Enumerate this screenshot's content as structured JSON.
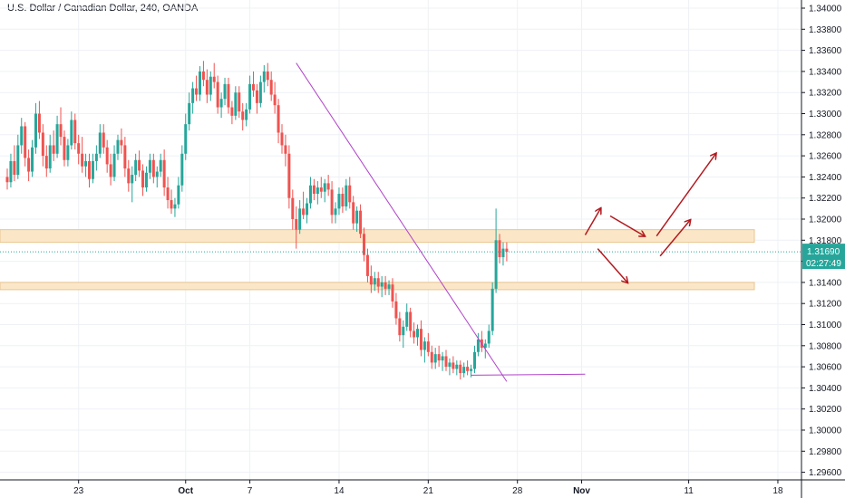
{
  "header": {
    "title": "U.S. Dollar / Canadian Dollar, 240, OANDA"
  },
  "price_tag": {
    "price": "1.31690",
    "countdown": "02:27:49"
  },
  "colors": {
    "up": "#26a69a",
    "down": "#ef5350",
    "zone_fill": "#fbe7c8",
    "zone_border": "#e8c58f",
    "trendline": "#b043c9",
    "arrow": "#b2191e",
    "price_line": "#26a69a",
    "grid": "#eef1f5"
  },
  "chart_data": {
    "type": "candlestick",
    "title": "U.S. Dollar / Canadian Dollar, 240, OANDA",
    "xlabel": "",
    "ylabel": "",
    "ylim": [
      1.295,
      1.341
    ],
    "y_ticks": [
      "1.34000",
      "1.33800",
      "1.33600",
      "1.33400",
      "1.33200",
      "1.33000",
      "1.32800",
      "1.32600",
      "1.32400",
      "1.32200",
      "1.32000",
      "1.31800",
      "1.31600",
      "1.31400",
      "1.31200",
      "1.31000",
      "1.30800",
      "1.30600",
      "1.30400",
      "1.30200",
      "1.30000",
      "1.29800",
      "1.29600"
    ],
    "x_ticks": [
      {
        "label": "23",
        "index": 20
      },
      {
        "label": "Oct",
        "index": 50
      },
      {
        "label": "7",
        "index": 68
      },
      {
        "label": "14",
        "index": 93
      },
      {
        "label": "21",
        "index": 118
      },
      {
        "label": "28",
        "index": 143
      },
      {
        "label": "Nov",
        "index": 161
      },
      {
        "label": "11",
        "index": 191
      },
      {
        "label": "18",
        "index": 216
      }
    ],
    "key_prices": [
      1.3362,
      1.3356,
      1.335,
      1.33,
      1.322,
      1.319,
      1.3178,
      1.3168,
      1.314,
      1.3135,
      1.3085,
      1.306,
      1.3052,
      1.3048
    ],
    "candles": [
      [
        1.324,
        1.3248,
        1.3228,
        1.3235
      ],
      [
        1.3235,
        1.3262,
        1.323,
        1.3255
      ],
      [
        1.3255,
        1.327,
        1.3236,
        1.3242
      ],
      [
        1.3242,
        1.328,
        1.3238,
        1.327
      ],
      [
        1.327,
        1.3296,
        1.3262,
        1.3288
      ],
      [
        1.3288,
        1.3292,
        1.325,
        1.3258
      ],
      [
        1.3258,
        1.3266,
        1.3236,
        1.3245
      ],
      [
        1.3245,
        1.3275,
        1.324,
        1.3268
      ],
      [
        1.3268,
        1.331,
        1.3262,
        1.33
      ],
      [
        1.33,
        1.3312,
        1.3276,
        1.3282
      ],
      [
        1.3282,
        1.329,
        1.325,
        1.326
      ],
      [
        1.326,
        1.327,
        1.324,
        1.3248
      ],
      [
        1.3248,
        1.328,
        1.3244,
        1.327
      ],
      [
        1.327,
        1.3284,
        1.3255,
        1.3262
      ],
      [
        1.3262,
        1.3298,
        1.3258,
        1.329
      ],
      [
        1.329,
        1.3306,
        1.327,
        1.3278
      ],
      [
        1.3278,
        1.3284,
        1.325,
        1.3256
      ],
      [
        1.3256,
        1.3276,
        1.325,
        1.327
      ],
      [
        1.327,
        1.3302,
        1.3266,
        1.3294
      ],
      [
        1.3294,
        1.33,
        1.3266,
        1.3272
      ],
      [
        1.3272,
        1.328,
        1.3252,
        1.3262
      ],
      [
        1.3262,
        1.3278,
        1.3244,
        1.325
      ],
      [
        1.325,
        1.3262,
        1.324,
        1.3255
      ],
      [
        1.3255,
        1.3262,
        1.323,
        1.3238
      ],
      [
        1.3238,
        1.3262,
        1.3234,
        1.3255
      ],
      [
        1.3255,
        1.327,
        1.3246,
        1.3262
      ],
      [
        1.3262,
        1.329,
        1.3258,
        1.3282
      ],
      [
        1.3282,
        1.329,
        1.3262,
        1.3268
      ],
      [
        1.3268,
        1.3275,
        1.3244,
        1.3252
      ],
      [
        1.3252,
        1.3262,
        1.3232,
        1.324
      ],
      [
        1.324,
        1.327,
        1.3236,
        1.3262
      ],
      [
        1.3262,
        1.328,
        1.3256,
        1.3275
      ],
      [
        1.3275,
        1.3286,
        1.3262,
        1.327
      ],
      [
        1.327,
        1.3278,
        1.324,
        1.3248
      ],
      [
        1.3248,
        1.3256,
        1.3226,
        1.3234
      ],
      [
        1.3234,
        1.325,
        1.3216,
        1.3242
      ],
      [
        1.3242,
        1.3262,
        1.3236,
        1.3256
      ],
      [
        1.3256,
        1.3265,
        1.324,
        1.3246
      ],
      [
        1.3246,
        1.3252,
        1.3222,
        1.323
      ],
      [
        1.323,
        1.325,
        1.3226,
        1.3244
      ],
      [
        1.3244,
        1.3262,
        1.3238,
        1.3256
      ],
      [
        1.3256,
        1.3262,
        1.3234,
        1.324
      ],
      [
        1.324,
        1.325,
        1.323,
        1.3245
      ],
      [
        1.3245,
        1.3262,
        1.324,
        1.3256
      ],
      [
        1.3256,
        1.3266,
        1.3222,
        1.323
      ],
      [
        1.323,
        1.324,
        1.321,
        1.3218
      ],
      [
        1.3218,
        1.3228,
        1.3205,
        1.321
      ],
      [
        1.321,
        1.322,
        1.3202,
        1.3214
      ],
      [
        1.3214,
        1.324,
        1.321,
        1.3232
      ],
      [
        1.3232,
        1.327,
        1.3226,
        1.3262
      ],
      [
        1.3262,
        1.33,
        1.3256,
        1.329
      ],
      [
        1.329,
        1.332,
        1.3284,
        1.331
      ],
      [
        1.331,
        1.333,
        1.33,
        1.3324
      ],
      [
        1.3324,
        1.3336,
        1.3312,
        1.3318
      ],
      [
        1.3318,
        1.3345,
        1.3312,
        1.334
      ],
      [
        1.334,
        1.335,
        1.3326,
        1.3332
      ],
      [
        1.3332,
        1.3342,
        1.331,
        1.3318
      ],
      [
        1.3318,
        1.334,
        1.3312,
        1.3335
      ],
      [
        1.3335,
        1.3348,
        1.3324,
        1.333
      ],
      [
        1.333,
        1.3336,
        1.33,
        1.3306
      ],
      [
        1.3306,
        1.332,
        1.3296,
        1.3314
      ],
      [
        1.3314,
        1.3334,
        1.3308,
        1.3328
      ],
      [
        1.3328,
        1.3334,
        1.33,
        1.3306
      ],
      [
        1.3306,
        1.3312,
        1.329,
        1.3298
      ],
      [
        1.3298,
        1.3326,
        1.3294,
        1.332
      ],
      [
        1.332,
        1.3326,
        1.3296,
        1.3302
      ],
      [
        1.3302,
        1.331,
        1.3284,
        1.3294
      ],
      [
        1.3294,
        1.331,
        1.3288,
        1.3304
      ],
      [
        1.3304,
        1.3336,
        1.33,
        1.3328
      ],
      [
        1.3328,
        1.334,
        1.3316,
        1.3322
      ],
      [
        1.3322,
        1.3328,
        1.33,
        1.331
      ],
      [
        1.331,
        1.3336,
        1.3306,
        1.333
      ],
      [
        1.333,
        1.3346,
        1.332,
        1.334
      ],
      [
        1.334,
        1.3348,
        1.3326,
        1.3332
      ],
      [
        1.3332,
        1.334,
        1.3312,
        1.3318
      ],
      [
        1.3318,
        1.333,
        1.33,
        1.3308
      ],
      [
        1.3308,
        1.3314,
        1.3272,
        1.3282
      ],
      [
        1.3282,
        1.329,
        1.3262,
        1.327
      ],
      [
        1.327,
        1.328,
        1.325,
        1.3262
      ],
      [
        1.3262,
        1.327,
        1.321,
        1.322
      ],
      [
        1.322,
        1.3228,
        1.319,
        1.32
      ],
      [
        1.32,
        1.3212,
        1.3172,
        1.319
      ],
      [
        1.319,
        1.3218,
        1.3186,
        1.321
      ],
      [
        1.321,
        1.3226,
        1.32,
        1.3204
      ],
      [
        1.3204,
        1.322,
        1.3196,
        1.3215
      ],
      [
        1.3215,
        1.324,
        1.321,
        1.3232
      ],
      [
        1.3232,
        1.3238,
        1.3218,
        1.3224
      ],
      [
        1.3224,
        1.3236,
        1.3214,
        1.323
      ],
      [
        1.323,
        1.324,
        1.322,
        1.3226
      ],
      [
        1.3226,
        1.3238,
        1.3216,
        1.3234
      ],
      [
        1.3234,
        1.3242,
        1.3222,
        1.3228
      ],
      [
        1.3228,
        1.3236,
        1.3196,
        1.3204
      ],
      [
        1.3204,
        1.3216,
        1.3196,
        1.321
      ],
      [
        1.321,
        1.323,
        1.3204,
        1.3224
      ],
      [
        1.3224,
        1.323,
        1.3206,
        1.3212
      ],
      [
        1.3212,
        1.3238,
        1.3208,
        1.3232
      ],
      [
        1.3232,
        1.324,
        1.321,
        1.3216
      ],
      [
        1.3216,
        1.3222,
        1.319,
        1.3196
      ],
      [
        1.3196,
        1.3212,
        1.3188,
        1.3208
      ],
      [
        1.3208,
        1.3214,
        1.3182,
        1.3186
      ],
      [
        1.3186,
        1.3192,
        1.316,
        1.3166
      ],
      [
        1.3166,
        1.3172,
        1.314,
        1.3146
      ],
      [
        1.3146,
        1.3156,
        1.313,
        1.3138
      ],
      [
        1.3138,
        1.315,
        1.3132,
        1.3144
      ],
      [
        1.3144,
        1.315,
        1.313,
        1.3136
      ],
      [
        1.3136,
        1.3146,
        1.3126,
        1.314
      ],
      [
        1.314,
        1.3146,
        1.3128,
        1.3134
      ],
      [
        1.3134,
        1.3142,
        1.3128,
        1.3138
      ],
      [
        1.3138,
        1.3144,
        1.3116,
        1.3122
      ],
      [
        1.3122,
        1.313,
        1.31,
        1.3106
      ],
      [
        1.3106,
        1.3112,
        1.3084,
        1.309
      ],
      [
        1.309,
        1.3104,
        1.3078,
        1.3098
      ],
      [
        1.3098,
        1.312,
        1.3094,
        1.3112
      ],
      [
        1.3112,
        1.3116,
        1.3088,
        1.3094
      ],
      [
        1.3094,
        1.3102,
        1.3082,
        1.3088
      ],
      [
        1.3088,
        1.31,
        1.308,
        1.3096
      ],
      [
        1.3096,
        1.3104,
        1.307,
        1.3076
      ],
      [
        1.3076,
        1.3088,
        1.3064,
        1.3084
      ],
      [
        1.3084,
        1.3092,
        1.307,
        1.3074
      ],
      [
        1.3074,
        1.308,
        1.3058,
        1.3064
      ],
      [
        1.3064,
        1.3078,
        1.3058,
        1.3072
      ],
      [
        1.3072,
        1.308,
        1.306,
        1.3066
      ],
      [
        1.3066,
        1.3074,
        1.3056,
        1.307
      ],
      [
        1.307,
        1.3076,
        1.3056,
        1.306
      ],
      [
        1.306,
        1.3068,
        1.3052,
        1.3064
      ],
      [
        1.3064,
        1.307,
        1.3054,
        1.3058
      ],
      [
        1.3058,
        1.3066,
        1.3052,
        1.3062
      ],
      [
        1.3062,
        1.3066,
        1.3048,
        1.3054
      ],
      [
        1.3054,
        1.3064,
        1.305,
        1.306
      ],
      [
        1.306,
        1.3066,
        1.3052,
        1.3056
      ],
      [
        1.3056,
        1.3062,
        1.305,
        1.3058
      ],
      [
        1.3058,
        1.308,
        1.3054,
        1.3074
      ],
      [
        1.3074,
        1.3092,
        1.307,
        1.3086
      ],
      [
        1.3086,
        1.3094,
        1.3074,
        1.3078
      ],
      [
        1.3078,
        1.3086,
        1.3068,
        1.3082
      ],
      [
        1.3082,
        1.31,
        1.3078,
        1.3094
      ],
      [
        1.3094,
        1.314,
        1.309,
        1.3134
      ],
      [
        1.3134,
        1.321,
        1.313,
        1.318
      ],
      [
        1.318,
        1.3186,
        1.3158,
        1.3164
      ],
      [
        1.3164,
        1.3178,
        1.3156,
        1.3172
      ],
      [
        1.3172,
        1.3178,
        1.316,
        1.3169
      ]
    ]
  },
  "annotations": {
    "resistance_zone": [
      1.3178,
      1.319
    ],
    "support_zone": [
      1.3135,
      1.314
    ],
    "trendline": [
      [
        81,
        1.3348
      ],
      [
        140,
        1.3046
      ]
    ],
    "bottom_line": [
      [
        130,
        1.3052
      ],
      [
        162,
        1.3053
      ]
    ]
  }
}
